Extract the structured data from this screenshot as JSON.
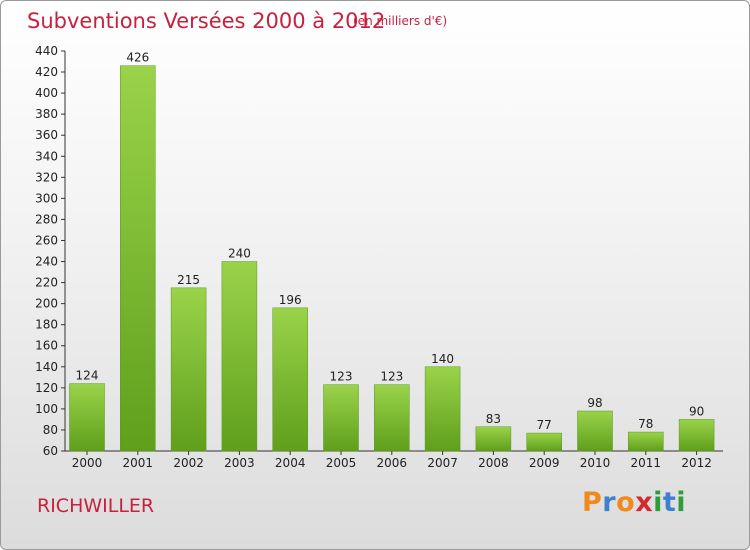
{
  "header": {
    "title": "Subventions Versées 2000 à 2012",
    "unit": "(en milliers d'€)"
  },
  "footer": {
    "commune": "RICHWILLER",
    "logo": [
      "P",
      "r",
      "o",
      "x",
      "i",
      "t",
      "i"
    ],
    "logo_colors": [
      "#f08a1c",
      "#3e7fcf",
      "#f08a1c",
      "#d4282c",
      "#2e9e3a",
      "#3e7fcf",
      "#2e9e3a"
    ]
  },
  "colors": {
    "bar": "#7fc231",
    "bar_dark": "#5e9e1c",
    "accent": "#c8203f"
  },
  "chart_data": {
    "type": "bar",
    "title": "Subventions Versées 2000 à 2012",
    "subtitle": "(en milliers d'€)",
    "categories": [
      "2000",
      "2001",
      "2002",
      "2003",
      "2004",
      "2005",
      "2006",
      "2007",
      "2008",
      "2009",
      "2010",
      "2011",
      "2012"
    ],
    "values": [
      124,
      426,
      215,
      240,
      196,
      123,
      123,
      140,
      83,
      77,
      98,
      78,
      90
    ],
    "ylim": [
      60,
      440
    ],
    "yticks": [
      60,
      80,
      100,
      120,
      140,
      160,
      180,
      200,
      220,
      240,
      260,
      280,
      300,
      320,
      340,
      360,
      380,
      400,
      420,
      440
    ],
    "grid": false,
    "xlabel": "",
    "ylabel": ""
  }
}
